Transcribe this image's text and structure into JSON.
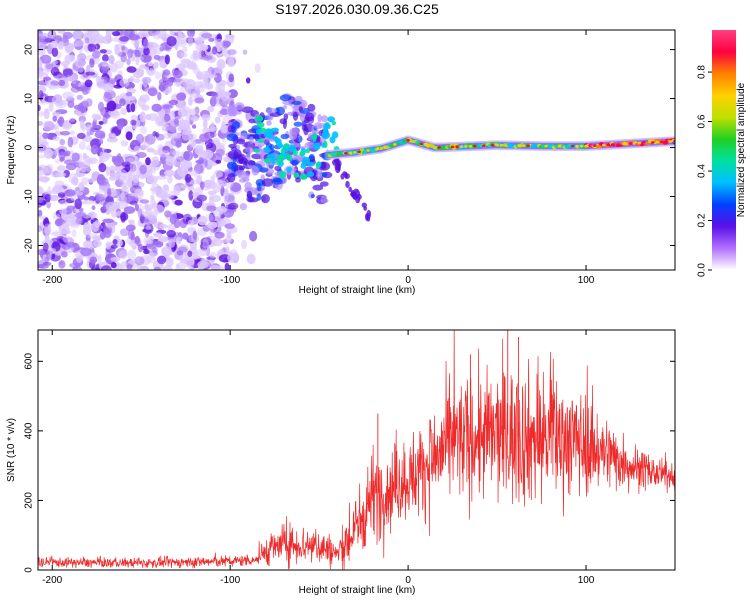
{
  "title": "S197.2026.030.09.36.C25",
  "chart_data": [
    {
      "type": "heatmap",
      "title": "S197.2026.030.09.36.C25",
      "xlabel": "Height of straight line (km)",
      "ylabel": "Frequency (Hz)",
      "xlim": [
        -208,
        150
      ],
      "ylim": [
        -25,
        24
      ],
      "xticks": [
        -200,
        -100,
        0,
        100
      ],
      "xtick_labels": [
        "-200",
        "-100",
        "0",
        "100"
      ],
      "yticks": [
        -20,
        -10,
        0,
        10,
        20
      ],
      "ytick_labels": [
        "-20",
        "-10",
        "0",
        "10",
        "20"
      ],
      "ridge": {
        "description_x": [
          -45,
          -30,
          -15,
          0,
          15,
          30,
          50,
          75,
          100,
          125,
          150
        ],
        "frequency": [
          -1.5,
          -1,
          -0.2,
          1.5,
          0,
          0.2,
          0.5,
          0.3,
          0.3,
          0.8,
          1.3
        ]
      },
      "colorbar": {
        "label": "Normalized spectral amplitude",
        "range": [
          0,
          0.97
        ],
        "ticks": [
          0.0,
          0.2,
          0.4,
          0.6,
          0.8
        ],
        "tick_labels": [
          "0.0",
          "0.2",
          "0.4",
          "0.6",
          "0.8"
        ],
        "colors": [
          "#ffffff",
          "#b070ff",
          "#5a10e8",
          "#0040ff",
          "#00c0ff",
          "#00e0a0",
          "#20d020",
          "#c0e000",
          "#ffd000",
          "#ff8000",
          "#ff0040",
          "#ff4080"
        ]
      }
    },
    {
      "type": "line",
      "xlabel": "Height of straight line (km)",
      "ylabel": "SNR (10 * v/v)",
      "xlim": [
        -208,
        150
      ],
      "ylim": [
        0,
        690
      ],
      "xticks": [
        -200,
        -100,
        0,
        100
      ],
      "xtick_labels": [
        "-200",
        "-100",
        "0",
        "100"
      ],
      "yticks": [
        0,
        200,
        400,
        600
      ],
      "ytick_labels": [
        "0",
        "200",
        "400",
        "600"
      ],
      "color": "#ee2a2a",
      "envelope": {
        "x": [
          -208,
          -150,
          -100,
          -85,
          -80,
          -70,
          -50,
          -40,
          -30,
          -20,
          -15,
          -5,
          5,
          15,
          25,
          40,
          55,
          70,
          90,
          110,
          125,
          140,
          150
        ],
        "mean": [
          22,
          20,
          25,
          30,
          55,
          75,
          70,
          45,
          110,
          220,
          220,
          250,
          280,
          320,
          370,
          380,
          390,
          380,
          380,
          340,
          300,
          275,
          270
        ],
        "noise": [
          10,
          10,
          12,
          12,
          30,
          40,
          40,
          30,
          70,
          90,
          90,
          80,
          90,
          110,
          120,
          130,
          140,
          140,
          120,
          80,
          50,
          30,
          25
        ]
      },
      "notable_peaks": [
        {
          "x": -17,
          "y": 450
        },
        {
          "x": 35,
          "y": 620
        },
        {
          "x": 56,
          "y": 690
        },
        {
          "x": 62,
          "y": 670
        },
        {
          "x": 80,
          "y": 520
        }
      ]
    }
  ]
}
